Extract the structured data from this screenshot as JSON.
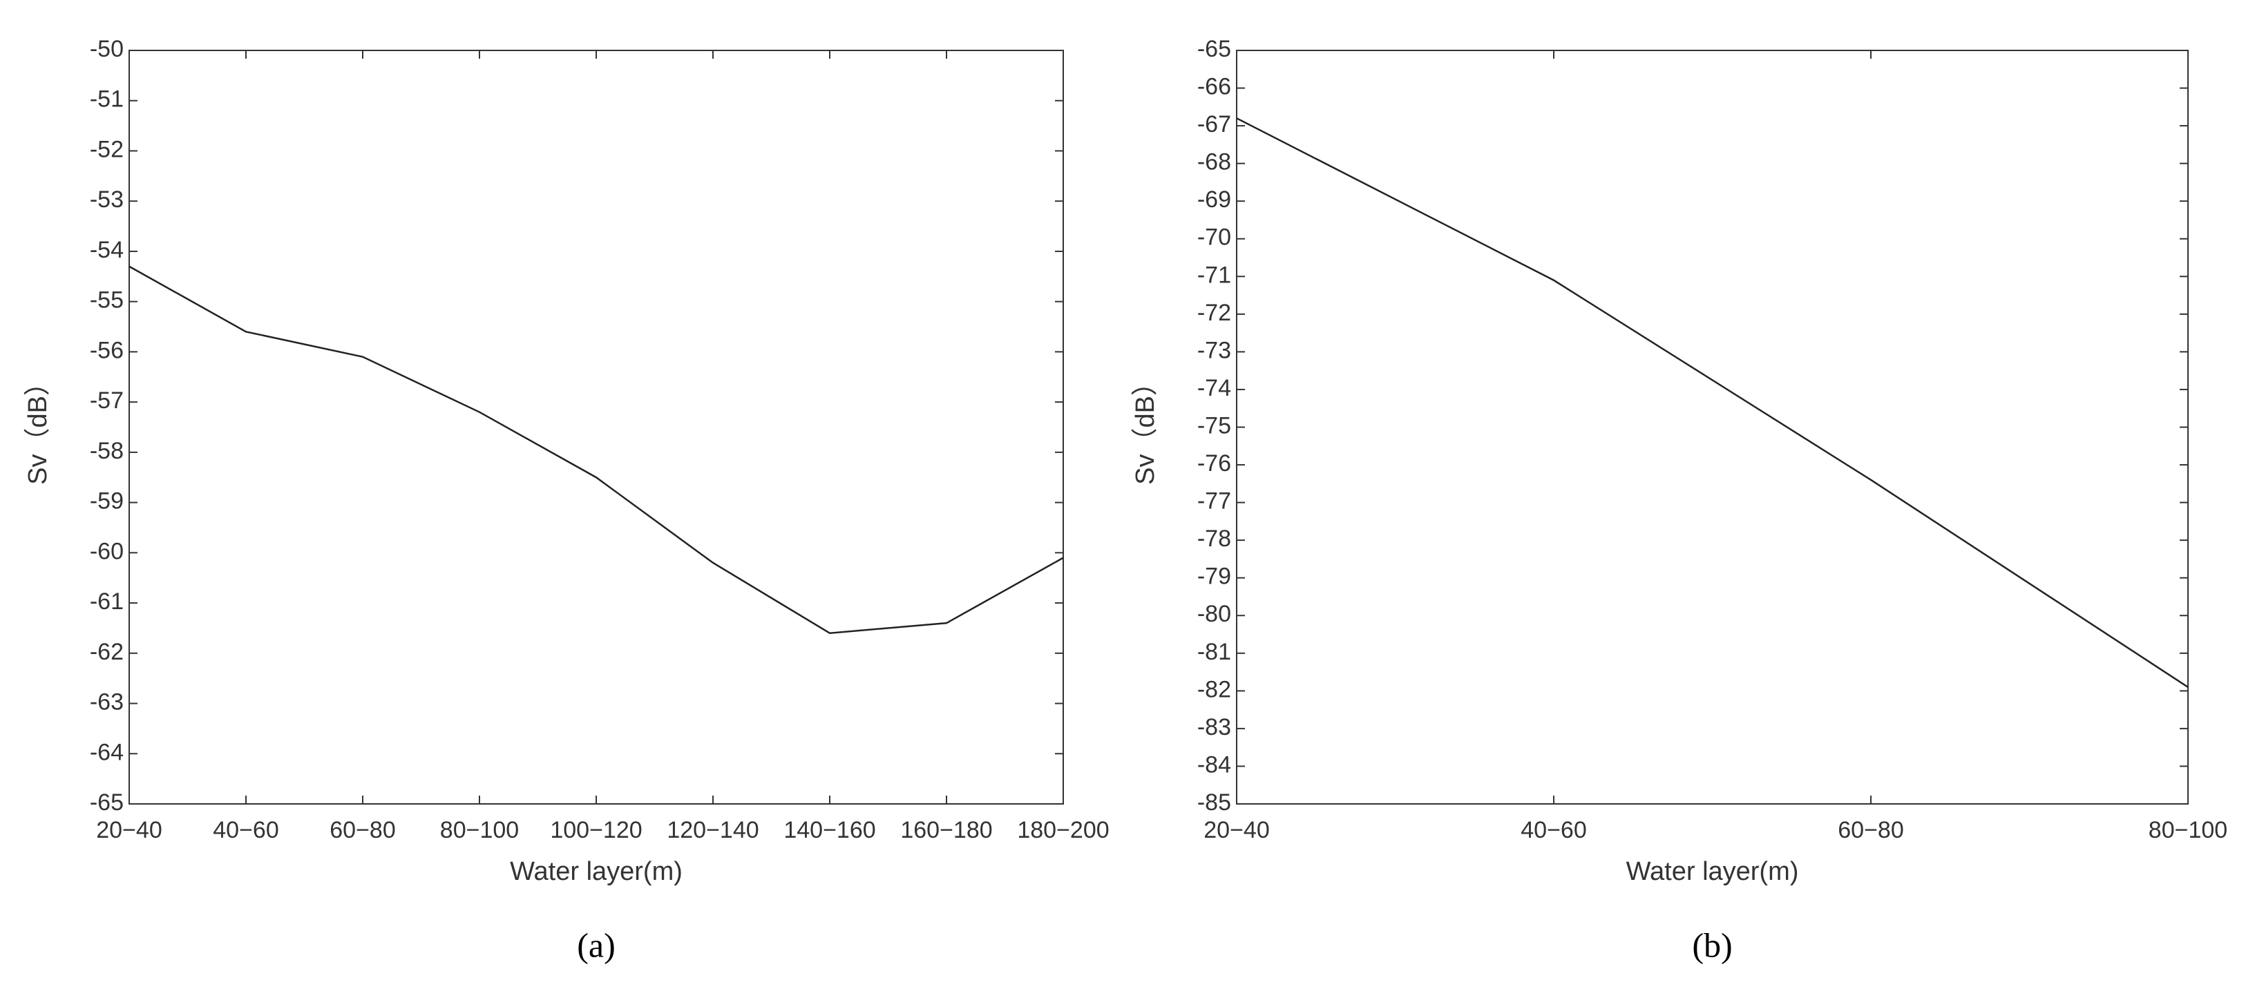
{
  "chart_data": [
    {
      "type": "line",
      "caption": "(a)",
      "xlabel": "Water layer(m)",
      "ylabel": "Sv（dB）",
      "categories": [
        "20−40",
        "40−60",
        "60−80",
        "80−100",
        "100−120",
        "120−140",
        "140−160",
        "160−180",
        "180−200"
      ],
      "values": [
        -54.3,
        -55.6,
        -56.1,
        -57.2,
        -58.5,
        -60.2,
        -61.6,
        -61.4,
        -60.1
      ],
      "color": "#222222",
      "ylim": [
        -65,
        -50
      ],
      "yticks": [
        -65,
        -64,
        -63,
        -62,
        -61,
        -60,
        -59,
        -58,
        -57,
        -56,
        -55,
        -54,
        -53,
        -52,
        -51,
        -50
      ]
    },
    {
      "type": "line",
      "caption": "(b)",
      "xlabel": "Water layer(m)",
      "ylabel": "Sv（dB）",
      "categories": [
        "20−40",
        "40−60",
        "60−80",
        "80−100"
      ],
      "values": [
        -66.8,
        -71.1,
        -76.4,
        -81.9
      ],
      "color": "#222222",
      "ylim": [
        -85,
        -65
      ],
      "yticks": [
        -85,
        -84,
        -83,
        -82,
        -81,
        -80,
        -79,
        -78,
        -77,
        -76,
        -75,
        -74,
        -73,
        -72,
        -71,
        -70,
        -69,
        -68,
        -67,
        -66,
        -65
      ]
    }
  ]
}
